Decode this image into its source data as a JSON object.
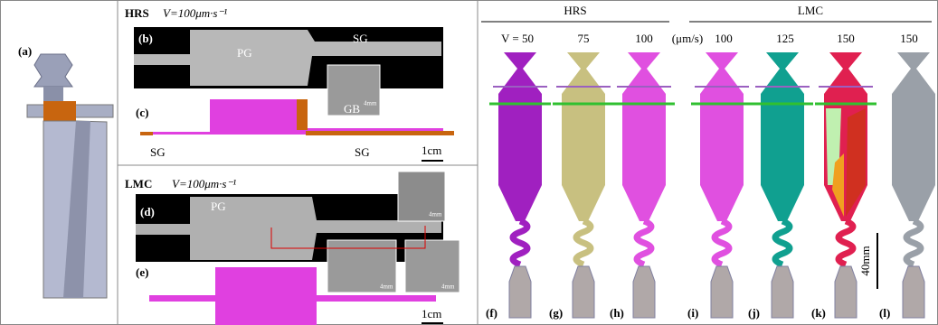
{
  "panel_a": {
    "label": "(a)"
  },
  "hrs": {
    "title": "HRS",
    "speed": "V=100μm·s⁻¹",
    "b": {
      "label": "(b)",
      "pg": "PG",
      "sg": "SG",
      "gb": "GB",
      "inset_scale": "4mm"
    },
    "c": {
      "label": "(c)",
      "sg_left": "SG",
      "sg_right": "SG",
      "scale": "1cm"
    }
  },
  "lmc": {
    "title": "LMC",
    "speed": "V=100μm·s⁻¹",
    "d": {
      "label": "(d)",
      "pg": "PG",
      "inset_scales": [
        "4mm",
        "4mm",
        "4mm"
      ]
    },
    "e": {
      "label": "(e)",
      "scale": "1cm"
    }
  },
  "right": {
    "groups": [
      "HRS",
      "LMC"
    ],
    "speeds": [
      "V = 50",
      "75",
      "100",
      "(μm/s)",
      "100",
      "125",
      "150",
      "150"
    ],
    "scale": "40mm",
    "labels": [
      "(f)",
      "(g)",
      "(h)",
      "(i)",
      "(j)",
      "(k)",
      "(l)"
    ]
  }
}
